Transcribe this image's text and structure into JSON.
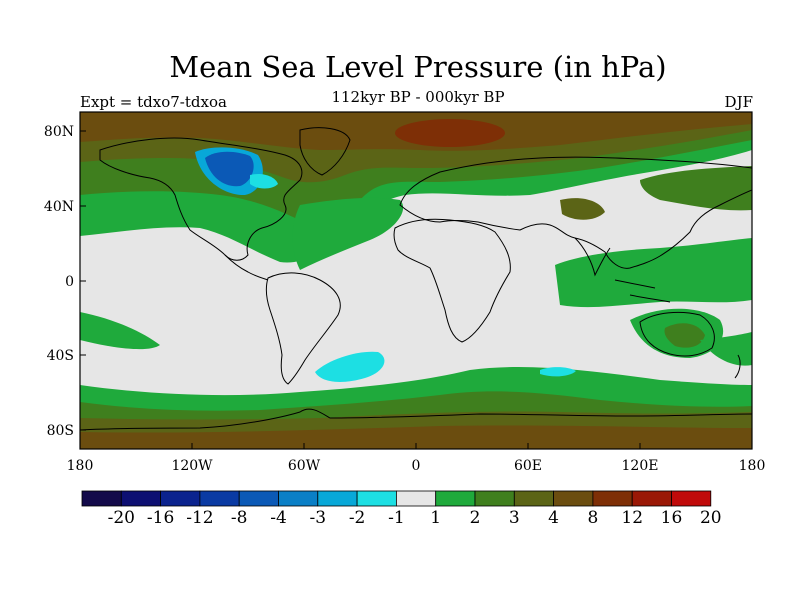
{
  "title": "Mean Sea Level Pressure (in hPa)",
  "subtitle": "112kyr BP - 000kyr BP",
  "left_label": "Expt = tdxo7-tdxoa",
  "right_label": "DJF",
  "axes": {
    "lat_ticks": [
      "80N",
      "40N",
      "0",
      "40S",
      "80S"
    ],
    "lon_ticks": [
      "180",
      "120W",
      "60W",
      "0",
      "60E",
      "120E",
      "180"
    ]
  },
  "colorbar": {
    "labels": [
      "-20",
      "-16",
      "-12",
      "-8",
      "-4",
      "-3",
      "-2",
      "-1",
      "1",
      "2",
      "3",
      "4",
      "8",
      "12",
      "16",
      "20"
    ],
    "colors": [
      "#130a4a",
      "#0d0f72",
      "#0b238e",
      "#0a3aa3",
      "#0b59b6",
      "#0a7fc6",
      "#08a8d8",
      "#1ddfe3",
      "#e6e6e6",
      "#1faa3c",
      "#3f7f1e",
      "#5b6416",
      "#6b4d0f",
      "#7e2f06",
      "#9a1806",
      "#c00a0a"
    ]
  },
  "fill_colors": {
    "neutral": "#e6e6e6",
    "green": "#1faa3c",
    "darkgreen": "#3f7f1e",
    "olive": "#5b6416",
    "brown": "#6b4d0f",
    "rust": "#7e2f06",
    "blue": "#0b59b6",
    "lightblue": "#08a8d8",
    "cyan": "#1ddfe3"
  }
}
